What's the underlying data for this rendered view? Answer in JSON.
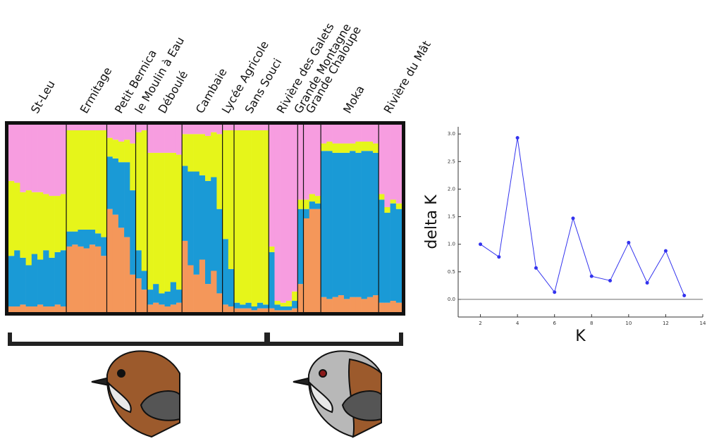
{
  "chart_data": [
    {
      "type": "structure",
      "colors": [
        "#f4975a",
        "#1a9ad6",
        "#e6f51a",
        "#f79de0"
      ],
      "populations": [
        {
          "name": "St-Leu",
          "individuals": [
            [
              0.03,
              0.27,
              0.4,
              0.3
            ],
            [
              0.03,
              0.3,
              0.36,
              0.31
            ],
            [
              0.04,
              0.25,
              0.35,
              0.36
            ],
            [
              0.03,
              0.22,
              0.4,
              0.35
            ],
            [
              0.03,
              0.28,
              0.33,
              0.36
            ],
            [
              0.04,
              0.24,
              0.36,
              0.36
            ],
            [
              0.03,
              0.3,
              0.3,
              0.37
            ],
            [
              0.03,
              0.26,
              0.33,
              0.38
            ],
            [
              0.04,
              0.28,
              0.3,
              0.38
            ],
            [
              0.03,
              0.3,
              0.3,
              0.37
            ]
          ]
        },
        {
          "name": "Ermitage",
          "individuals": [
            [
              0.35,
              0.08,
              0.54,
              0.03
            ],
            [
              0.36,
              0.07,
              0.54,
              0.03
            ],
            [
              0.35,
              0.09,
              0.53,
              0.03
            ],
            [
              0.34,
              0.1,
              0.53,
              0.03
            ],
            [
              0.36,
              0.08,
              0.53,
              0.03
            ],
            [
              0.35,
              0.07,
              0.55,
              0.03
            ],
            [
              0.3,
              0.1,
              0.57,
              0.03
            ]
          ]
        },
        {
          "name": "Petit Bernica",
          "individuals": [
            [
              0.55,
              0.28,
              0.1,
              0.07
            ],
            [
              0.52,
              0.3,
              0.1,
              0.08
            ],
            [
              0.45,
              0.35,
              0.11,
              0.09
            ],
            [
              0.4,
              0.4,
              0.12,
              0.08
            ],
            [
              0.2,
              0.45,
              0.25,
              0.1
            ]
          ]
        },
        {
          "name": "le Moulin à Eau",
          "individuals": [
            [
              0.18,
              0.15,
              0.63,
              0.04
            ],
            [
              0.12,
              0.1,
              0.75,
              0.03
            ]
          ]
        },
        {
          "name": "Déboulé",
          "individuals": [
            [
              0.04,
              0.08,
              0.73,
              0.15
            ],
            [
              0.05,
              0.1,
              0.7,
              0.15
            ],
            [
              0.04,
              0.06,
              0.75,
              0.15
            ],
            [
              0.03,
              0.08,
              0.74,
              0.15
            ],
            [
              0.04,
              0.12,
              0.69,
              0.15
            ],
            [
              0.05,
              0.07,
              0.72,
              0.16
            ]
          ]
        },
        {
          "name": "Cambaie",
          "individuals": [
            [
              0.38,
              0.4,
              0.17,
              0.05
            ],
            [
              0.25,
              0.5,
              0.2,
              0.05
            ],
            [
              0.2,
              0.55,
              0.2,
              0.05
            ],
            [
              0.28,
              0.45,
              0.22,
              0.05
            ],
            [
              0.15,
              0.55,
              0.24,
              0.06
            ],
            [
              0.22,
              0.5,
              0.24,
              0.04
            ],
            [
              0.1,
              0.45,
              0.4,
              0.05
            ]
          ]
        },
        {
          "name": "Lycée Agricole",
          "individuals": [
            [
              0.04,
              0.35,
              0.58,
              0.03
            ],
            [
              0.03,
              0.2,
              0.74,
              0.03
            ]
          ]
        },
        {
          "name": "Sans Souci",
          "individuals": [
            [
              0.02,
              0.03,
              0.92,
              0.03
            ],
            [
              0.02,
              0.02,
              0.93,
              0.03
            ],
            [
              0.02,
              0.03,
              0.92,
              0.03
            ],
            [
              0.01,
              0.02,
              0.94,
              0.03
            ],
            [
              0.02,
              0.03,
              0.92,
              0.03
            ],
            [
              0.02,
              0.02,
              0.93,
              0.03
            ]
          ]
        },
        {
          "name": "Rivière des Galets",
          "individuals": [
            [
              0.02,
              0.3,
              0.03,
              0.65
            ],
            [
              0.01,
              0.03,
              0.02,
              0.94
            ],
            [
              0.01,
              0.02,
              0.02,
              0.95
            ],
            [
              0.01,
              0.02,
              0.03,
              0.94
            ],
            [
              0.02,
              0.04,
              0.05,
              0.89
            ]
          ]
        },
        {
          "name": "Grande Montagne",
          "individuals": [
            [
              0.15,
              0.4,
              0.05,
              0.4
            ]
          ]
        },
        {
          "name": "Grande Chaloupe",
          "individuals": [
            [
              0.5,
              0.05,
              0.05,
              0.4
            ],
            [
              0.55,
              0.04,
              0.04,
              0.37
            ],
            [
              0.55,
              0.03,
              0.04,
              0.38
            ]
          ]
        },
        {
          "name": "Moka",
          "individuals": [
            [
              0.08,
              0.78,
              0.04,
              0.1
            ],
            [
              0.07,
              0.79,
              0.05,
              0.09
            ],
            [
              0.08,
              0.77,
              0.05,
              0.1
            ],
            [
              0.09,
              0.76,
              0.05,
              0.1
            ],
            [
              0.07,
              0.78,
              0.05,
              0.1
            ],
            [
              0.08,
              0.78,
              0.04,
              0.1
            ],
            [
              0.08,
              0.77,
              0.06,
              0.09
            ],
            [
              0.07,
              0.79,
              0.05,
              0.09
            ],
            [
              0.08,
              0.78,
              0.05,
              0.09
            ],
            [
              0.09,
              0.76,
              0.05,
              0.1
            ]
          ]
        },
        {
          "name": "Rivière du Mât",
          "individuals": [
            [
              0.05,
              0.55,
              0.03,
              0.37
            ],
            [
              0.05,
              0.48,
              0.03,
              0.44
            ],
            [
              0.06,
              0.52,
              0.02,
              0.4
            ],
            [
              0.05,
              0.5,
              0.03,
              0.42
            ]
          ]
        }
      ]
    },
    {
      "type": "line",
      "x": [
        2,
        3,
        4,
        5,
        6,
        7,
        8,
        9,
        10,
        11,
        12,
        13
      ],
      "values": [
        1.0,
        0.77,
        2.93,
        0.57,
        0.13,
        1.47,
        0.42,
        0.34,
        1.03,
        0.3,
        0.88,
        0.07
      ],
      "color": "#3333ee",
      "xlabel": "K",
      "ylabel": "delta K",
      "xlim": [
        0.8,
        14
      ],
      "ylim": [
        -0.32,
        3.13
      ],
      "xticks": [
        2,
        4,
        6,
        8,
        10,
        12,
        14
      ],
      "yticks": [
        {
          "value": 0,
          "label": "0.0"
        },
        {
          "value": 0.5,
          "label": "0.5"
        },
        {
          "value": 1,
          "label": "1.0"
        },
        {
          "value": 1.5,
          "label": "1.5"
        },
        {
          "value": 2,
          "label": "2.0"
        },
        {
          "value": 2.5,
          "label": "2.5"
        },
        {
          "value": 3,
          "label": "3.0"
        }
      ]
    }
  ]
}
